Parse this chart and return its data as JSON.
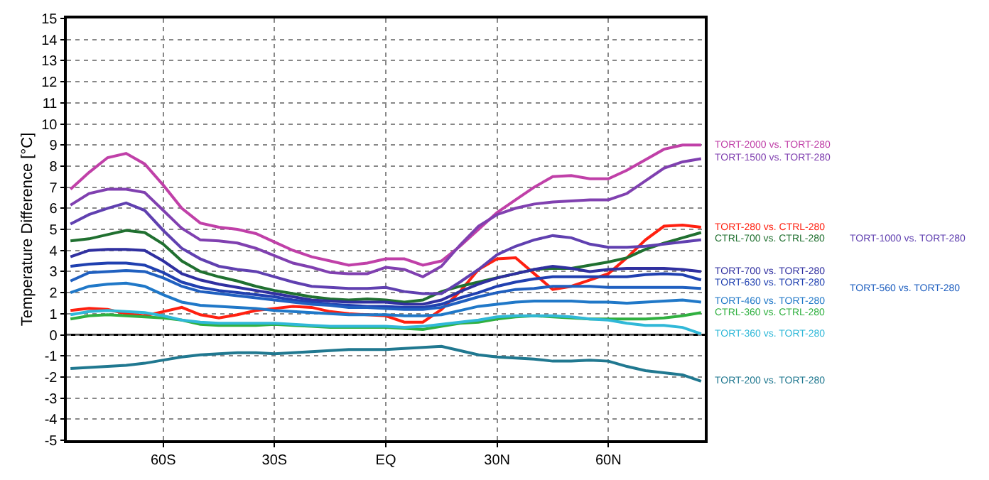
{
  "chart_data": {
    "type": "line",
    "ylabel": "Temperature Difference [°C]",
    "x": [
      -85,
      -80,
      -75,
      -70,
      -65,
      -60,
      -55,
      -50,
      -45,
      -40,
      -35,
      -30,
      -25,
      -20,
      -15,
      -10,
      -5,
      0,
      5,
      10,
      15,
      20,
      25,
      30,
      35,
      40,
      45,
      50,
      55,
      60,
      65,
      70,
      75,
      80,
      85
    ],
    "xlim": [
      -86,
      86
    ],
    "xticks": [
      {
        "value": -60,
        "label": "60S"
      },
      {
        "value": -30,
        "label": "30S"
      },
      {
        "value": 0,
        "label": "EQ"
      },
      {
        "value": 30,
        "label": "30N"
      },
      {
        "value": 60,
        "label": "60N"
      }
    ],
    "ylim": [
      -5,
      15
    ],
    "yticks": [
      -5,
      -4,
      -3,
      -2,
      -1,
      0,
      1,
      2,
      3,
      4,
      5,
      6,
      7,
      8,
      9,
      10,
      11,
      12,
      13,
      14,
      15
    ],
    "grid": true,
    "legend": false,
    "line_style": "solid",
    "marker": "none",
    "ref_lines": [
      {
        "axis": "y",
        "value": 0,
        "color": "#000000"
      }
    ],
    "series": [
      {
        "name": "TORT-2000 vs. TORT-280",
        "color": "#c040a8",
        "values": [
          6.9,
          7.7,
          8.4,
          8.6,
          8.1,
          7.1,
          6.0,
          5.3,
          5.1,
          5.0,
          4.8,
          4.4,
          4.0,
          3.7,
          3.5,
          3.3,
          3.4,
          3.6,
          3.6,
          3.3,
          3.5,
          4.2,
          5.0,
          5.8,
          6.4,
          7.0,
          7.5,
          7.55,
          7.4,
          7.4,
          7.8,
          8.3,
          8.8,
          9.0,
          9.0
        ]
      },
      {
        "name": "TORT-1500 vs. TORT-280",
        "color": "#8040b0",
        "values": [
          6.15,
          6.7,
          6.9,
          6.9,
          6.75,
          5.9,
          5.05,
          4.5,
          4.45,
          4.35,
          4.1,
          3.75,
          3.4,
          3.2,
          2.95,
          2.9,
          2.9,
          3.2,
          3.1,
          2.75,
          3.25,
          4.25,
          5.15,
          5.7,
          6.0,
          6.2,
          6.3,
          6.35,
          6.4,
          6.4,
          6.7,
          7.3,
          7.9,
          8.2,
          8.35
        ]
      },
      {
        "name": "TORT-280 vs. CTRL-280",
        "color": "#ff2010",
        "values": [
          1.15,
          1.25,
          1.2,
          1.0,
          0.9,
          1.1,
          1.3,
          0.95,
          0.8,
          0.95,
          1.15,
          1.25,
          1.35,
          1.3,
          1.1,
          1.0,
          0.95,
          0.9,
          0.6,
          0.6,
          1.2,
          2.05,
          3.1,
          3.6,
          3.65,
          2.9,
          2.15,
          2.3,
          2.6,
          2.9,
          3.65,
          4.5,
          5.15,
          5.2,
          5.1
        ]
      },
      {
        "name": "CTRL-700 vs. CTRL-280",
        "color": "#207030",
        "values": [
          4.45,
          4.55,
          4.75,
          4.95,
          4.85,
          4.3,
          3.5,
          3.0,
          2.75,
          2.55,
          2.3,
          2.1,
          1.95,
          1.8,
          1.7,
          1.65,
          1.7,
          1.65,
          1.55,
          1.65,
          2.05,
          2.3,
          2.5,
          2.7,
          2.9,
          3.1,
          3.15,
          3.15,
          3.3,
          3.45,
          3.65,
          4.05,
          4.35,
          4.6,
          4.85
        ]
      },
      {
        "name": "TORT-1000 vs. TORT-280",
        "color": "#6040b0",
        "values": [
          5.25,
          5.7,
          6.0,
          6.25,
          5.9,
          4.95,
          4.1,
          3.6,
          3.25,
          3.1,
          3.0,
          2.75,
          2.5,
          2.3,
          2.25,
          2.2,
          2.2,
          2.25,
          2.05,
          1.95,
          1.95,
          2.5,
          3.1,
          3.8,
          4.2,
          4.5,
          4.7,
          4.6,
          4.3,
          4.15,
          4.15,
          4.2,
          4.3,
          4.4,
          4.5
        ]
      },
      {
        "name": "TORT-700 vs. TORT-280",
        "color": "#3030a0",
        "values": [
          3.7,
          4.0,
          4.05,
          4.05,
          4.0,
          3.5,
          2.9,
          2.6,
          2.4,
          2.25,
          2.1,
          1.95,
          1.8,
          1.65,
          1.6,
          1.55,
          1.55,
          1.55,
          1.45,
          1.45,
          1.65,
          2.05,
          2.4,
          2.7,
          2.9,
          3.1,
          3.25,
          3.15,
          3.0,
          3.1,
          3.15,
          3.15,
          3.15,
          3.1,
          3.0
        ]
      },
      {
        "name": "TORT-630 vs. TORT-280",
        "color": "#2040b0",
        "values": [
          3.25,
          3.35,
          3.4,
          3.4,
          3.3,
          2.95,
          2.5,
          2.25,
          2.1,
          2.0,
          1.9,
          1.8,
          1.65,
          1.55,
          1.45,
          1.4,
          1.35,
          1.35,
          1.3,
          1.3,
          1.45,
          1.75,
          2.0,
          2.3,
          2.5,
          2.65,
          2.75,
          2.75,
          2.75,
          2.75,
          2.75,
          2.85,
          2.9,
          2.85,
          2.6
        ]
      },
      {
        "name": "TORT-560 vs. TORT-280",
        "color": "#2060c0",
        "values": [
          2.55,
          2.95,
          3.0,
          3.05,
          3.0,
          2.7,
          2.3,
          2.05,
          1.95,
          1.85,
          1.75,
          1.65,
          1.55,
          1.45,
          1.4,
          1.3,
          1.3,
          1.25,
          1.2,
          1.2,
          1.3,
          1.55,
          1.8,
          2.0,
          2.15,
          2.2,
          2.3,
          2.3,
          2.3,
          2.25,
          2.25,
          2.25,
          2.25,
          2.25,
          2.2
        ]
      },
      {
        "name": "TORT-460 vs. TORT-280",
        "color": "#2078c8",
        "values": [
          2.0,
          2.3,
          2.4,
          2.45,
          2.3,
          1.9,
          1.55,
          1.4,
          1.35,
          1.3,
          1.25,
          1.15,
          1.1,
          1.05,
          1.0,
          0.95,
          0.95,
          0.95,
          0.9,
          0.9,
          0.95,
          1.15,
          1.35,
          1.45,
          1.55,
          1.6,
          1.6,
          1.6,
          1.55,
          1.55,
          1.5,
          1.55,
          1.6,
          1.65,
          1.55
        ]
      },
      {
        "name": "CTRL-360 vs. CTRL-280",
        "color": "#30b040",
        "values": [
          0.75,
          0.9,
          0.95,
          0.9,
          0.85,
          0.8,
          0.7,
          0.5,
          0.45,
          0.45,
          0.45,
          0.5,
          0.45,
          0.4,
          0.35,
          0.35,
          0.35,
          0.35,
          0.3,
          0.25,
          0.4,
          0.55,
          0.6,
          0.75,
          0.85,
          0.9,
          0.85,
          0.8,
          0.75,
          0.75,
          0.75,
          0.75,
          0.8,
          0.9,
          1.05
        ]
      },
      {
        "name": "TORT-360 vs. TORT-280",
        "color": "#30b8d8",
        "values": [
          0.95,
          1.1,
          1.15,
          1.1,
          1.05,
          0.9,
          0.7,
          0.6,
          0.55,
          0.55,
          0.55,
          0.55,
          0.5,
          0.45,
          0.4,
          0.4,
          0.4,
          0.4,
          0.35,
          0.4,
          0.5,
          0.6,
          0.7,
          0.85,
          0.9,
          0.9,
          0.9,
          0.85,
          0.75,
          0.7,
          0.55,
          0.45,
          0.45,
          0.35,
          0.05
        ]
      },
      {
        "name": "TORT-200 vs. TORT-280",
        "color": "#207890",
        "values": [
          -1.6,
          -1.55,
          -1.5,
          -1.45,
          -1.35,
          -1.2,
          -1.05,
          -0.95,
          -0.9,
          -0.85,
          -0.85,
          -0.9,
          -0.85,
          -0.8,
          -0.75,
          -0.7,
          -0.7,
          -0.7,
          -0.65,
          -0.6,
          -0.55,
          -0.75,
          -0.95,
          -1.05,
          -1.1,
          -1.15,
          -1.25,
          -1.25,
          -1.2,
          -1.25,
          -1.5,
          -1.7,
          -1.8,
          -1.9,
          -2.2
        ]
      }
    ]
  }
}
